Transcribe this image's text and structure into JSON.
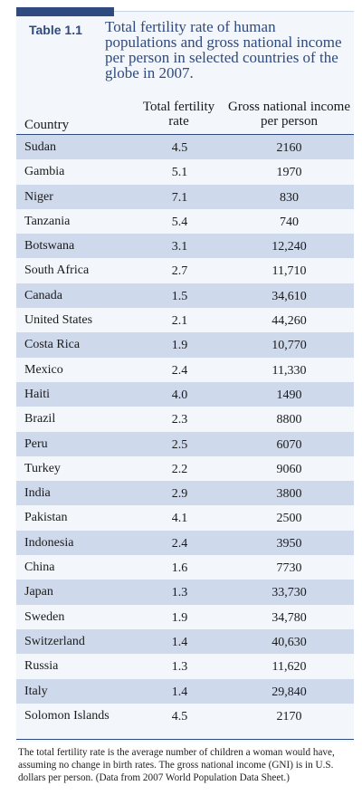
{
  "table": {
    "label": "Table 1.1",
    "title": "Total fertility rate of human populations and gross national income per person in selected countries of the globe in 2007.",
    "headers": {
      "country": "Country",
      "tfr": "Total fertility rate",
      "gni": "Gross national income per person"
    },
    "rows": [
      {
        "country": "Sudan",
        "tfr": "4.5",
        "gni": "2160"
      },
      {
        "country": "Gambia",
        "tfr": "5.1",
        "gni": "1970"
      },
      {
        "country": "Niger",
        "tfr": "7.1",
        "gni": "830"
      },
      {
        "country": "Tanzania",
        "tfr": "5.4",
        "gni": "740"
      },
      {
        "country": "Botswana",
        "tfr": "3.1",
        "gni": "12,240"
      },
      {
        "country": "South Africa",
        "tfr": "2.7",
        "gni": "11,710"
      },
      {
        "country": "Canada",
        "tfr": "1.5",
        "gni": "34,610"
      },
      {
        "country": "United States",
        "tfr": "2.1",
        "gni": "44,260"
      },
      {
        "country": "Costa Rica",
        "tfr": "1.9",
        "gni": "10,770"
      },
      {
        "country": "Mexico",
        "tfr": "2.4",
        "gni": "11,330"
      },
      {
        "country": "Haiti",
        "tfr": "4.0",
        "gni": "1490"
      },
      {
        "country": "Brazil",
        "tfr": "2.3",
        "gni": "8800"
      },
      {
        "country": "Peru",
        "tfr": "2.5",
        "gni": "6070"
      },
      {
        "country": "Turkey",
        "tfr": "2.2",
        "gni": "9060"
      },
      {
        "country": "India",
        "tfr": "2.9",
        "gni": "3800"
      },
      {
        "country": "Pakistan",
        "tfr": "4.1",
        "gni": "2500"
      },
      {
        "country": "Indonesia",
        "tfr": "2.4",
        "gni": "3950"
      },
      {
        "country": "China",
        "tfr": "1.6",
        "gni": "7730"
      },
      {
        "country": "Japan",
        "tfr": "1.3",
        "gni": "33,730"
      },
      {
        "country": "Sweden",
        "tfr": "1.9",
        "gni": "34,780"
      },
      {
        "country": "Switzerland",
        "tfr": "1.4",
        "gni": "40,630"
      },
      {
        "country": "Russia",
        "tfr": "1.3",
        "gni": "11,620"
      },
      {
        "country": "Italy",
        "tfr": "1.4",
        "gni": "29,840"
      },
      {
        "country": "Solomon Islands",
        "tfr": "4.5",
        "gni": "2170"
      }
    ],
    "caption": "The total fertility rate is the average number of children a woman would have, assuming no change in birth rates. The gross national income (GNI) is in U.S. dollars per person. (Data from 2007 World Population Data Sheet.)"
  },
  "colors": {
    "accent": "#2f4a7f",
    "row_shade": "#cfd9ec",
    "panel_bg": "#f3f6fb"
  }
}
